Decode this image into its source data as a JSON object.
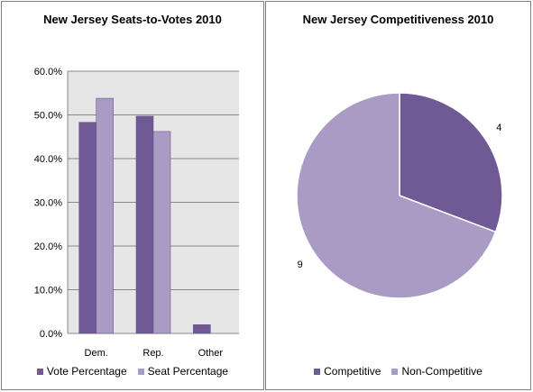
{
  "colors": {
    "dark": "#705a96",
    "light": "#a99bc4",
    "plot_bg": "#e6e6e6"
  },
  "chart_data": [
    {
      "type": "bar",
      "title": "New Jersey Seats-to-Votes 2010",
      "categories": [
        "Dem.",
        "Rep.",
        "Other"
      ],
      "series": [
        {
          "name": "Vote Percentage",
          "values": [
            48.3,
            49.7,
            2.0
          ]
        },
        {
          "name": "Seat Percentage",
          "values": [
            53.8,
            46.2,
            0.0
          ]
        }
      ],
      "ylim": [
        0,
        60
      ],
      "yticks": [
        "0.0%",
        "10.0%",
        "20.0%",
        "30.0%",
        "40.0%",
        "50.0%",
        "60.0%"
      ],
      "grid": true,
      "legend": "bottom"
    },
    {
      "type": "pie",
      "title": "New Jersey Competitiveness 2010",
      "slices": [
        {
          "name": "Competitive",
          "value": 4,
          "label": "4"
        },
        {
          "name": "Non-Competitive",
          "value": 9,
          "label": "9"
        }
      ],
      "legend": "bottom"
    }
  ]
}
